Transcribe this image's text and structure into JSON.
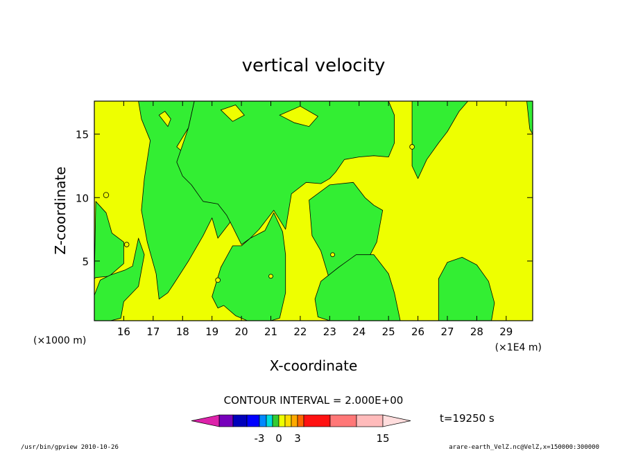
{
  "chart_data": {
    "type": "contour",
    "title": "vertical velocity",
    "xlabel": "X-coordinate",
    "ylabel": "Z-coordinate",
    "x_scale_note_left": "(×1000 m)",
    "x_scale_note_right": "(×1E4 m)",
    "x_ticks": [
      16,
      17,
      18,
      19,
      20,
      21,
      22,
      23,
      24,
      25,
      26,
      27,
      28,
      29
    ],
    "xlim": [
      15.0,
      29.9
    ],
    "y_ticks": [
      5,
      10,
      15
    ],
    "ylim": [
      0.3,
      17.6
    ],
    "contour_interval_text": "CONTOUR INTERVAL = 2.000E+00",
    "time_label": "t=19250 s",
    "colorbar": {
      "colors": [
        "#dd22aa",
        "#7700bb",
        "#0000bb",
        "#0000ff",
        "#0088ff",
        "#00dddd",
        "#33cc33",
        "#eeff00",
        "#ffdd00",
        "#ffaa00",
        "#ff6600",
        "#ff1111",
        "#ff7777",
        "#ffbbbb",
        "#ffdddd"
      ],
      "labels": [
        {
          "text": "-3",
          "value": -3
        },
        {
          "text": "0",
          "value": 0
        },
        {
          "text": "3",
          "value": 3
        },
        {
          "text": "15",
          "value": 15
        }
      ]
    },
    "fields": {
      "background_color": "#eeff00",
      "region_color": "#33ee33",
      "regions": [
        {
          "x": [
            15.05,
            15.5,
            16.0,
            16.0,
            15.6,
            15.4,
            15.05,
            15.0
          ],
          "y": [
            3.7,
            3.8,
            4.8,
            6.5,
            7.2,
            8.8,
            9.7,
            3.6
          ]
        },
        {
          "x": [
            15.1,
            15.55,
            15.9,
            16.0,
            16.5,
            16.7,
            16.5,
            16.3,
            16.05,
            15.55,
            15.2,
            15.0,
            15.0
          ],
          "y": [
            0.3,
            0.3,
            0.5,
            1.8,
            3.0,
            5.5,
            6.8,
            4.6,
            4.3,
            3.9,
            3.5,
            2.3,
            0.3
          ]
        },
        {
          "x": [
            16.6,
            17.4,
            18.0,
            18.4,
            18.2,
            17.8,
            18.0,
            18.7,
            19.5,
            19.8,
            19.6,
            19.2,
            19.0,
            18.7,
            18.2,
            17.7,
            17.5,
            17.2,
            17.1,
            16.8,
            16.6,
            16.7,
            16.9,
            16.6,
            16.5
          ],
          "y": [
            17.6,
            17.6,
            17.6,
            17.6,
            15.5,
            14.0,
            13.6,
            13.6,
            11.0,
            9.5,
            8.0,
            6.8,
            8.4,
            7.0,
            5.0,
            3.2,
            2.5,
            2.0,
            4.0,
            6.5,
            9.0,
            11.5,
            14.5,
            16.2,
            17.6
          ]
        },
        {
          "x": [
            18.4,
            19.8,
            20.3,
            20.9,
            21.5,
            22.3,
            23.2,
            23.9,
            24.6,
            25.0,
            25.2,
            25.2,
            25.0,
            24.5,
            24.0,
            23.5,
            23.2,
            23.0,
            22.7,
            22.2,
            21.7,
            21.5,
            21.1,
            20.6,
            20.3,
            20.0,
            19.7,
            19.5,
            19.2,
            18.7,
            18.3,
            18.0,
            17.8,
            18.2
          ],
          "y": [
            17.6,
            17.6,
            17.6,
            17.6,
            17.6,
            17.6,
            17.6,
            17.6,
            17.6,
            17.6,
            16.5,
            14.3,
            13.2,
            13.3,
            13.2,
            13.0,
            12.0,
            11.5,
            11.1,
            11.2,
            10.3,
            7.5,
            9.0,
            7.5,
            6.8,
            6.3,
            7.7,
            8.6,
            9.5,
            9.7,
            11.0,
            11.7,
            12.8,
            15.5
          ]
        },
        {
          "x": [
            19.0,
            19.3,
            19.7,
            20.0,
            20.3,
            20.8,
            21.1,
            21.4,
            21.5,
            21.5,
            21.3,
            21.0,
            20.6,
            20.2,
            19.8,
            19.4,
            19.2,
            19.0
          ],
          "y": [
            2.2,
            4.5,
            6.2,
            6.2,
            6.8,
            7.4,
            8.8,
            7.3,
            5.5,
            2.5,
            0.5,
            0.3,
            0.3,
            0.3,
            0.7,
            1.5,
            1.3,
            2.2
          ]
        },
        {
          "x": [
            22.3,
            23.0,
            23.8,
            24.2,
            24.5,
            24.8,
            24.6,
            24.0,
            23.5,
            23.0,
            22.7,
            22.4,
            22.3
          ],
          "y": [
            9.8,
            11.0,
            11.2,
            10.0,
            9.4,
            9.0,
            6.5,
            3.8,
            4.5,
            3.5,
            5.8,
            7.0,
            9.8
          ]
        },
        {
          "x": [
            22.7,
            23.3,
            23.9,
            24.5,
            25.0,
            25.2,
            25.4,
            24.8,
            23.9,
            23.0,
            22.6,
            22.5,
            22.7
          ],
          "y": [
            3.4,
            4.5,
            5.5,
            5.5,
            4.0,
            2.5,
            0.3,
            0.3,
            0.3,
            0.3,
            0.6,
            2.0,
            3.4
          ]
        },
        {
          "x": [
            25.8,
            26.3,
            26.8,
            27.3,
            27.7,
            27.4,
            27.0,
            26.7,
            26.3,
            26.0,
            25.8
          ],
          "y": [
            17.6,
            17.6,
            17.6,
            17.6,
            17.6,
            16.8,
            15.2,
            14.3,
            13.0,
            11.5,
            12.5
          ]
        },
        {
          "x": [
            29.8,
            29.9,
            29.9,
            29.8,
            29.7
          ],
          "y": [
            17.6,
            17.6,
            15.0,
            15.4,
            17.6
          ]
        },
        {
          "x": [
            26.7,
            27.0,
            27.3,
            27.7,
            28.2,
            28.5,
            28.6,
            28.4,
            28.0,
            27.5,
            27.0,
            26.7,
            26.7
          ],
          "y": [
            0.3,
            0.3,
            0.3,
            0.3,
            0.3,
            0.3,
            1.7,
            3.4,
            4.7,
            5.3,
            4.9,
            3.6,
            0.3
          ]
        }
      ],
      "holes": [
        {
          "x": [
            17.2,
            17.4,
            17.6,
            17.5,
            17.2
          ],
          "y": [
            16.5,
            16.8,
            16.2,
            15.6,
            16.5
          ]
        },
        {
          "x": [
            19.3,
            19.8,
            20.1,
            19.7,
            19.3
          ],
          "y": [
            16.9,
            17.3,
            16.5,
            16.0,
            16.9
          ]
        },
        {
          "x": [
            21.3,
            22.0,
            22.6,
            22.3,
            21.8,
            21.3
          ],
          "y": [
            16.5,
            17.2,
            16.4,
            15.6,
            15.9,
            16.5
          ]
        }
      ],
      "specks": [
        {
          "x": 15.4,
          "y": 10.2,
          "r": 0.09
        },
        {
          "x": 16.1,
          "y": 6.3,
          "r": 0.08
        },
        {
          "x": 19.2,
          "y": 3.5,
          "r": 0.08
        },
        {
          "x": 21.0,
          "y": 3.8,
          "r": 0.07
        },
        {
          "x": 23.1,
          "y": 5.5,
          "r": 0.07
        },
        {
          "x": 25.8,
          "y": 14.0,
          "r": 0.08
        }
      ]
    }
  },
  "footer": {
    "left": "/usr/bin/gpview  2010-10-26",
    "right": "arare-earth_VelZ.nc@VelZ,x=150000:300000"
  }
}
